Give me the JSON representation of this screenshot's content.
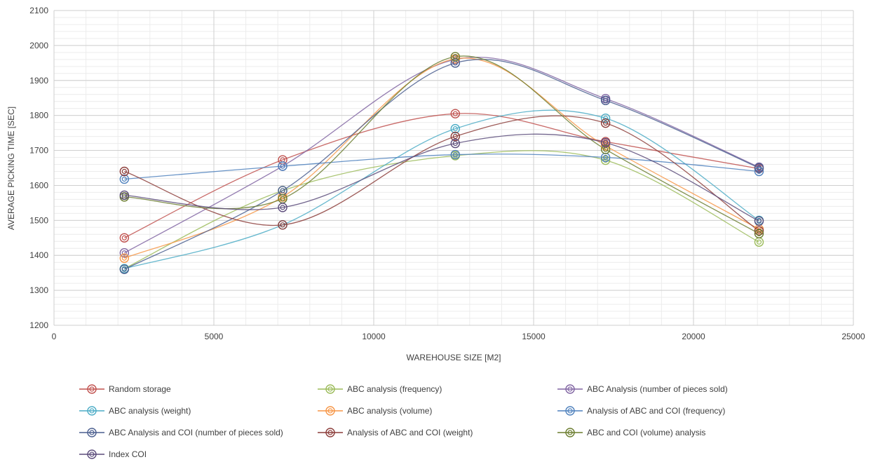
{
  "chart_data": {
    "type": "line",
    "title": "",
    "xlabel": "WAREHOUSE SIZE [M2]",
    "ylabel": "AVERAGE PICKING TIME [SEC]",
    "xlim": [
      0,
      25000
    ],
    "ylim": [
      1200,
      2100
    ],
    "x_ticks": [
      0,
      5000,
      10000,
      15000,
      20000,
      25000
    ],
    "y_ticks": [
      1200,
      1300,
      1400,
      1500,
      1600,
      1700,
      1800,
      1900,
      2000,
      2100
    ],
    "grid": true,
    "smooth": true,
    "legend_position": "bottom",
    "x": [
      2200,
      7150,
      12550,
      17250,
      22050
    ],
    "series": [
      {
        "name": "Random storage",
        "color": "#c0504d",
        "values": [
          1450,
          1673,
          1805,
          1725,
          1648
        ]
      },
      {
        "name": "ABC analysis (frequency)",
        "color": "#9bbb59",
        "values": [
          1362,
          1585,
          1685,
          1672,
          1438
        ]
      },
      {
        "name": "ABC Analysis (number of pieces sold)",
        "color": "#8064a2",
        "values": [
          1407,
          1655,
          1960,
          1848,
          1652
        ]
      },
      {
        "name": "ABC analysis (weight)",
        "color": "#4bacc6",
        "values": [
          1362,
          1487,
          1762,
          1792,
          1500
        ]
      },
      {
        "name": "ABC analysis (volume)",
        "color": "#f79646",
        "values": [
          1392,
          1567,
          1962,
          1713,
          1475
        ]
      },
      {
        "name": "Analysis of ABC and COI (frequency)",
        "color": "#4f81bd",
        "values": [
          1618,
          1655,
          1688,
          1680,
          1640
        ]
      },
      {
        "name": "ABC Analysis and COI (number of pieces sold)",
        "color": "#4a5e8f",
        "values": [
          1360,
          1585,
          1950,
          1843,
          1650
        ]
      },
      {
        "name": "Analysis of ABC and COI (weight)",
        "color": "#8c3d3a",
        "values": [
          1640,
          1487,
          1740,
          1778,
          1470
        ]
      },
      {
        "name": "ABC and COI (volume) analysis",
        "color": "#6b7d2f",
        "values": [
          1567,
          1562,
          1968,
          1703,
          1462
        ]
      },
      {
        "name": "Index COI",
        "color": "#5b4b7a",
        "values": [
          1572,
          1537,
          1720,
          1722,
          1498
        ]
      }
    ]
  }
}
